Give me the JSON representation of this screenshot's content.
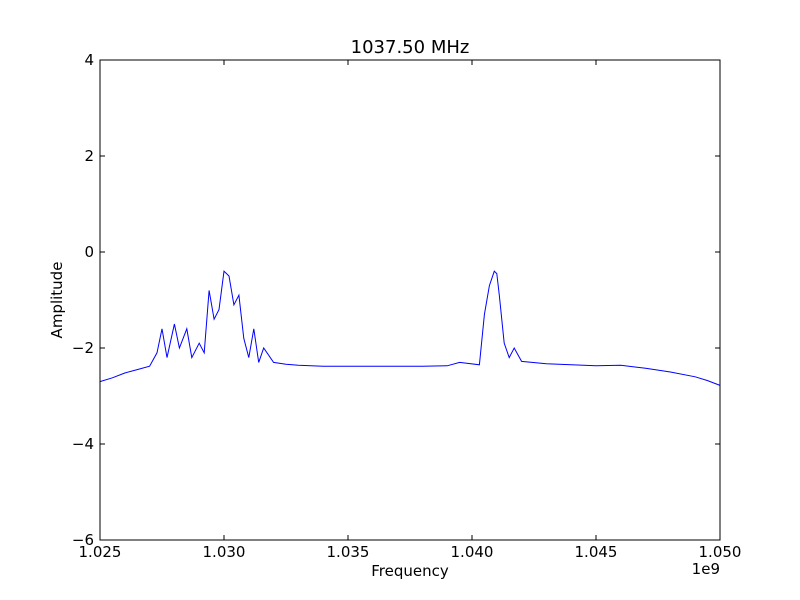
{
  "chart_data": {
    "type": "line",
    "title": "1037.50 MHz",
    "xlabel": "Frequency",
    "ylabel": "Amplitude",
    "x_offset_label": "1e9",
    "xlim": [
      1.025,
      1.05
    ],
    "ylim": [
      -6,
      4
    ],
    "xticks": [
      1.025,
      1.03,
      1.035,
      1.04,
      1.045,
      1.05
    ],
    "xtick_labels": [
      "1.025",
      "1.030",
      "1.035",
      "1.040",
      "1.045",
      "1.050"
    ],
    "yticks": [
      -6,
      -4,
      -2,
      0,
      2,
      4
    ],
    "ytick_labels": [
      "−6",
      "−4",
      "−2",
      "0",
      "2",
      "4"
    ],
    "grid": false,
    "line_color": "#0000ff",
    "series": [
      {
        "x": [
          1.025,
          1.0255,
          1.026,
          1.0265,
          1.027,
          1.0273,
          1.0275,
          1.0277,
          1.028,
          1.0282,
          1.0285,
          1.0287,
          1.029,
          1.0292,
          1.0294,
          1.0296,
          1.0298,
          1.03,
          1.0302,
          1.0304,
          1.0306,
          1.0308,
          1.031,
          1.0312,
          1.0314,
          1.0316,
          1.032,
          1.0325,
          1.033,
          1.034,
          1.035,
          1.036,
          1.037,
          1.038,
          1.039,
          1.0395,
          1.0403,
          1.0405,
          1.0407,
          1.0409,
          1.041,
          1.0411,
          1.0413,
          1.0415,
          1.0417,
          1.042,
          1.043,
          1.044,
          1.045,
          1.046,
          1.047,
          1.048,
          1.049,
          1.0495,
          1.05
        ],
        "y": [
          -2.7,
          -2.62,
          -2.52,
          -2.45,
          -2.38,
          -2.1,
          -1.6,
          -2.2,
          -1.5,
          -2.0,
          -1.6,
          -2.2,
          -1.9,
          -2.1,
          -0.8,
          -1.4,
          -1.2,
          -0.4,
          -0.5,
          -1.1,
          -0.9,
          -1.8,
          -2.2,
          -1.6,
          -2.3,
          -2.0,
          -2.3,
          -2.34,
          -2.36,
          -2.38,
          -2.38,
          -2.38,
          -2.38,
          -2.38,
          -2.37,
          -2.3,
          -2.35,
          -1.3,
          -0.7,
          -0.4,
          -0.45,
          -0.9,
          -1.9,
          -2.2,
          -2.0,
          -2.28,
          -2.33,
          -2.35,
          -2.37,
          -2.36,
          -2.42,
          -2.5,
          -2.6,
          -2.68,
          -2.78
        ]
      }
    ]
  }
}
